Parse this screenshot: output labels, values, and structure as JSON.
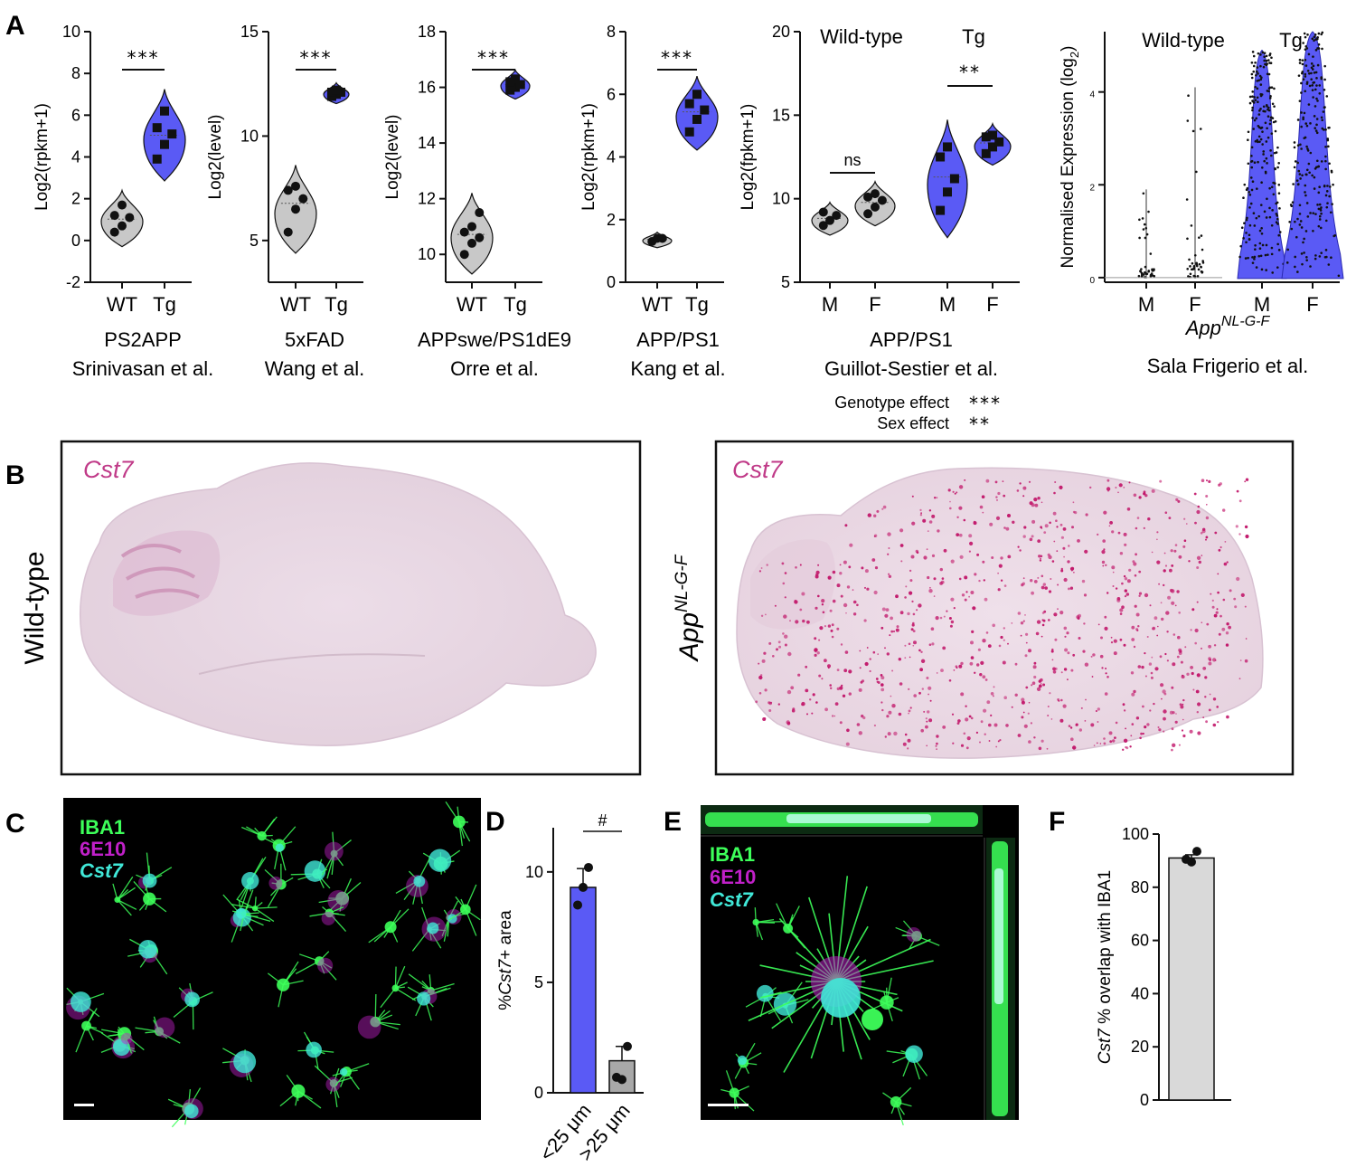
{
  "panels": {
    "A": "A",
    "B": "B",
    "C": "C",
    "D": "D",
    "E": "E",
    "F": "F"
  },
  "colors": {
    "tg": "#5a5af5",
    "wt": "#c8c8c8",
    "ish_pink": "#c2186b",
    "iba1": "#3dff5a",
    "e10": "#c020c8",
    "cst7": "#40e8d8"
  },
  "chart_data": [
    {
      "id": "A1",
      "type": "violin",
      "ylabel": "Log2(rpkm+1)",
      "ylim": [
        -2,
        10
      ],
      "yticks": [
        "-2",
        "0",
        "2",
        "4",
        "6",
        "8",
        "10"
      ],
      "categories": [
        "WT",
        "Tg"
      ],
      "series": [
        {
          "values": [
            0.4,
            0.7,
            1.1,
            1.2,
            1.7
          ]
        },
        {
          "values": [
            3.9,
            4.6,
            5.1,
            5.4,
            6.2
          ]
        }
      ],
      "sig": "***",
      "caption": [
        "PS2APP",
        "Srinivasan et al."
      ]
    },
    {
      "id": "A2",
      "type": "violin",
      "ylabel": "Log2(level)",
      "ylim": [
        3,
        15
      ],
      "yticks": [
        "5",
        "10",
        "15"
      ],
      "categories": [
        "WT",
        "Tg"
      ],
      "series": [
        {
          "values": [
            5.4,
            6.5,
            7.0,
            7.4,
            7.6
          ]
        },
        {
          "values": [
            11.9,
            12.0,
            12.1,
            12.1,
            12.2
          ]
        }
      ],
      "sig": "***",
      "caption": [
        "5xFAD",
        "Wang et al."
      ]
    },
    {
      "id": "A3",
      "type": "violin",
      "ylabel": "Log2(level)",
      "ylim": [
        9,
        18
      ],
      "yticks": [
        "10",
        "12",
        "14",
        "16",
        "18"
      ],
      "categories": [
        "WT",
        "Tg"
      ],
      "series": [
        {
          "values": [
            10.0,
            10.4,
            10.6,
            10.8,
            11.0,
            11.5
          ]
        },
        {
          "values": [
            15.9,
            16.0,
            16.1,
            16.2,
            16.3
          ]
        }
      ],
      "sig": "***",
      "caption": [
        "APPswe/PS1dE9",
        "Orre et al."
      ]
    },
    {
      "id": "A4",
      "type": "violin",
      "ylabel": "Log2(rpkm+1)",
      "ylim": [
        0,
        8
      ],
      "yticks": [
        "0",
        "2",
        "4",
        "6",
        "8"
      ],
      "categories": [
        "WT",
        "Tg"
      ],
      "series": [
        {
          "values": [
            1.3,
            1.4,
            1.4
          ]
        },
        {
          "values": [
            4.8,
            5.2,
            5.5,
            5.7,
            6.0
          ]
        }
      ],
      "sig": "***",
      "caption": [
        "APP/PS1",
        "Kang et al."
      ]
    },
    {
      "id": "A5",
      "type": "violin",
      "ylabel": "Log2(fpkm+1)",
      "ylim": [
        5,
        20
      ],
      "yticks": [
        "5",
        "10",
        "15",
        "20"
      ],
      "groups": [
        "Wild-type",
        "Tg"
      ],
      "categories": [
        "M",
        "F",
        "M",
        "F"
      ],
      "series": [
        {
          "values": [
            8.4,
            8.7,
            9.0,
            9.2
          ]
        },
        {
          "values": [
            9.1,
            9.5,
            9.9,
            10.1,
            10.3
          ]
        },
        {
          "values": [
            9.3,
            10.4,
            11.2,
            12.5,
            13.1
          ]
        },
        {
          "values": [
            12.7,
            13.1,
            13.4,
            13.7,
            13.8
          ]
        }
      ],
      "comparisons": [
        {
          "groups": [
            0,
            1
          ],
          "label": "ns"
        },
        {
          "groups": [
            2,
            3
          ],
          "label": "**"
        }
      ],
      "caption": [
        "APP/PS1",
        "Guillot-Sestier et al."
      ],
      "effects": [
        {
          "label": "Genotype effect",
          "sig": "***"
        },
        {
          "label": "Sex effect",
          "sig": "**"
        }
      ]
    },
    {
      "id": "A6",
      "type": "violin",
      "ylabel": "Normalised Expression (log",
      "ylabel_sub": "2",
      "ylabel_end": ")",
      "ylim": [
        -0.1,
        5.3
      ],
      "yticks": [
        "0",
        "2",
        "4"
      ],
      "groups": [
        "Wild-type",
        "Tg"
      ],
      "categories": [
        "M",
        "F",
        "M",
        "F"
      ],
      "max_values": [
        1.9,
        4.1,
        4.9,
        5.3
      ],
      "xtitle_main": "App",
      "xtitle_sup": "NL-G-F",
      "caption": [
        "Sala Frigerio et al."
      ]
    },
    {
      "id": "D",
      "type": "bar",
      "ylabel_pre": "%",
      "ylabel_italic": "Cst7",
      "ylabel_post": "+ area",
      "ylim": [
        0,
        12
      ],
      "yticks": [
        "0",
        "5",
        "10"
      ],
      "categories": [
        "<25 μm",
        ">25 μm"
      ],
      "values": [
        9.3,
        1.45
      ],
      "errors": [
        0.85,
        0.65
      ],
      "points": [
        [
          9.3,
          8.5,
          10.2
        ],
        [
          0.6,
          0.7,
          2.1
        ]
      ],
      "sig": "#"
    },
    {
      "id": "F",
      "type": "bar",
      "ylabel_italic": "Cst7",
      "ylabel_post": " % overlap with IBA1",
      "ylim": [
        0,
        100
      ],
      "yticks": [
        "0",
        "20",
        "40",
        "60",
        "80",
        "100"
      ],
      "categories": [
        ""
      ],
      "values": [
        91
      ],
      "errors": [
        1.2
      ],
      "points": [
        [
          89.5,
          90.5,
          93.5
        ]
      ]
    }
  ],
  "panel_b": {
    "left_label": "Wild-type",
    "right_label_main": "App",
    "right_label_sup": "NL-G-F",
    "probe": "Cst7"
  },
  "panel_c": {
    "labels": [
      "IBA1",
      "6E10",
      "Cst7"
    ]
  },
  "panel_e": {
    "labels": [
      "IBA1",
      "6E10",
      "Cst7"
    ]
  }
}
